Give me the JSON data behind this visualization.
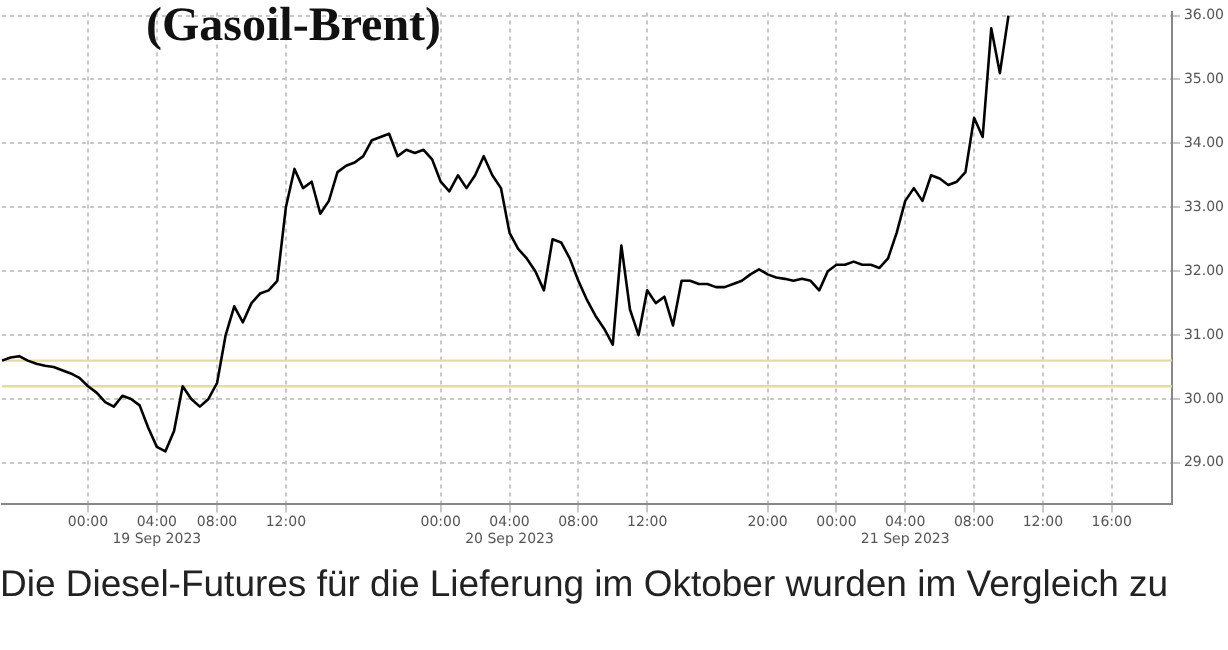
{
  "chart_data": {
    "type": "line",
    "title": "(Gasoil-Brent)",
    "categories": [
      null,
      null,
      null,
      null,
      null,
      null,
      null,
      null,
      null,
      null,
      "00:00",
      null,
      null,
      null,
      null,
      null,
      null,
      null,
      "04:00\n19 Sep 2023",
      null,
      null,
      null,
      null,
      null,
      null,
      "08:00",
      null,
      null,
      null,
      null,
      null,
      null,
      null,
      "12:00",
      null,
      null,
      null,
      null,
      null,
      null,
      null,
      null,
      null,
      null,
      null,
      null,
      null,
      null,
      null,
      null,
      null,
      "00:00",
      null,
      null,
      null,
      null,
      null,
      null,
      null,
      "04:00\n20 Sep 2023",
      null,
      null,
      null,
      null,
      null,
      null,
      null,
      "08:00",
      null,
      null,
      null,
      null,
      null,
      null,
      null,
      "12:00",
      null,
      null,
      null,
      null,
      null,
      null,
      null,
      null,
      null,
      null,
      null,
      null,
      null,
      "20:00",
      null,
      null,
      null,
      null,
      null,
      null,
      null,
      "00:00",
      null,
      null,
      null,
      null,
      null,
      null,
      null,
      "04:00\n21 Sep 2023",
      null,
      null,
      null,
      null,
      null,
      null,
      null,
      "08:00",
      null,
      null,
      null,
      null,
      null,
      null,
      null,
      "12:00",
      null,
      null,
      null,
      null,
      null,
      null,
      null,
      "16:00",
      null,
      null,
      null,
      null,
      null,
      null,
      null
    ],
    "values": [
      30.6,
      30.65,
      30.67,
      30.6,
      30.55,
      30.52,
      30.5,
      30.45,
      30.4,
      30.33,
      30.2,
      30.1,
      29.95,
      29.88,
      30.05,
      30.0,
      29.9,
      29.55,
      29.25,
      29.18,
      29.5,
      30.2,
      30.0,
      29.88,
      30.0,
      30.25,
      31.0,
      31.45,
      31.2,
      31.5,
      31.65,
      31.7,
      31.85,
      33.0,
      33.6,
      33.3,
      33.4,
      32.9,
      33.1,
      33.55,
      33.65,
      33.7,
      33.8,
      34.05,
      34.1,
      34.15,
      33.8,
      33.9,
      33.85,
      33.9,
      33.75,
      33.4,
      33.25,
      33.5,
      33.3,
      33.5,
      33.8,
      33.5,
      33.3,
      32.6,
      32.35,
      32.2,
      32.0,
      31.7,
      32.5,
      32.45,
      32.2,
      31.85,
      31.55,
      31.3,
      31.1,
      30.85,
      32.4,
      31.4,
      31.0,
      31.7,
      31.5,
      31.6,
      31.15,
      31.85,
      31.85,
      31.8,
      31.8,
      31.75,
      31.75,
      31.8,
      31.85,
      31.95,
      32.03,
      31.95,
      31.9,
      31.88,
      31.85,
      31.88,
      31.85,
      31.7,
      32.0,
      32.1,
      32.1,
      32.15,
      32.1,
      32.1,
      32.05,
      32.2,
      32.6,
      33.1,
      33.3,
      33.1,
      33.5,
      33.45,
      33.35,
      33.4,
      33.55,
      34.4,
      34.1,
      35.8,
      35.1,
      36.0,
      null,
      null,
      null,
      null,
      null,
      null,
      null,
      null,
      null,
      null,
      null,
      null,
      null,
      null,
      null,
      null,
      null,
      null,
      null
    ],
    "color": "#000000",
    "marker": "none",
    "ylim": [
      28.35,
      36.05
    ],
    "yticks": [
      {
        "value": 29,
        "label": "29.00"
      },
      {
        "value": 30,
        "label": "30.00"
      },
      {
        "value": 31,
        "label": "31.00"
      },
      {
        "value": 32,
        "label": "32.00"
      },
      {
        "value": 33,
        "label": "33.00"
      },
      {
        "value": 34,
        "label": "34.00"
      },
      {
        "value": 35,
        "label": "35.00"
      },
      {
        "value": 36,
        "label": "36.00"
      }
    ],
    "grid": true,
    "ref_lines": [
      {
        "axis": "y",
        "value": 30.6,
        "color": "#e3dba0"
      },
      {
        "axis": "y",
        "value": 30.2,
        "color": "#e3dba0"
      }
    ],
    "annotations": [
      "Die Diesel-Futures für die Lieferung im Oktober wurden im Vergleich zu"
    ]
  }
}
